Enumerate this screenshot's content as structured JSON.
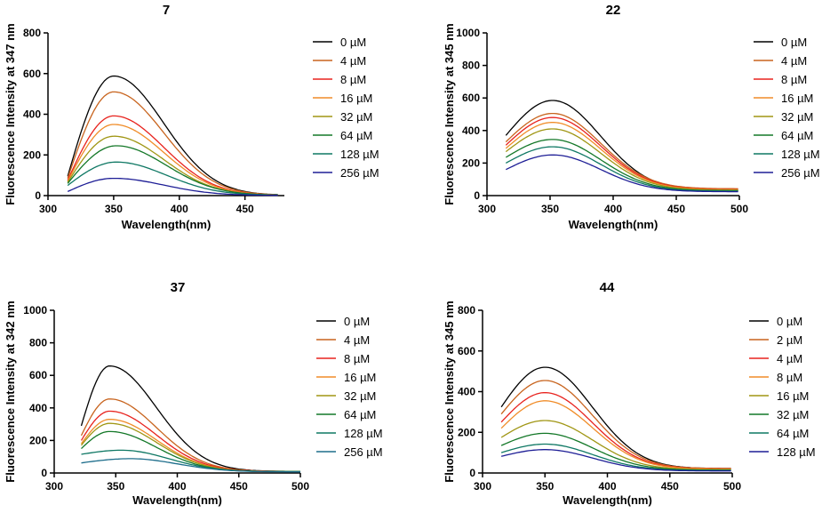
{
  "chart_data": [
    {
      "type": "line",
      "title": "7",
      "xlabel": "Wavelength(nm)",
      "ylabel": "Fluorescence Intensity at 347 nm",
      "xlim": [
        300,
        480
      ],
      "ylim": [
        0,
        800
      ],
      "x_ticks": [
        300,
        350,
        400,
        450
      ],
      "y_ticks": [
        0,
        200,
        400,
        600,
        800
      ],
      "x_range": [
        315,
        475
      ],
      "series": [
        {
          "name": "0 µM",
          "color": "#000000",
          "peak_x": 350,
          "peak": 588,
          "start": 95,
          "tail": 2
        },
        {
          "name": "4 µM",
          "color": "#c8641e",
          "peak_x": 350,
          "peak": 510,
          "start": 85,
          "tail": 2
        },
        {
          "name": "8 µM",
          "color": "#e8231e",
          "peak_x": 350,
          "peak": 392,
          "start": 75,
          "tail": 2
        },
        {
          "name": "16 µM",
          "color": "#f08c28",
          "peak_x": 350,
          "peak": 350,
          "start": 70,
          "tail": 2
        },
        {
          "name": "32 µM",
          "color": "#a09614",
          "peak_x": 350,
          "peak": 292,
          "start": 65,
          "tail": 2
        },
        {
          "name": "64 µM",
          "color": "#147828",
          "peak_x": 352,
          "peak": 245,
          "start": 60,
          "tail": 2
        },
        {
          "name": "128 µM",
          "color": "#0f7864",
          "peak_x": 352,
          "peak": 165,
          "start": 50,
          "tail": 2
        },
        {
          "name": "256 µM",
          "color": "#1e1e96",
          "peak_x": 350,
          "peak": 85,
          "start": 20,
          "tail": 1
        }
      ]
    },
    {
      "type": "line",
      "title": "22",
      "xlabel": "Wavelength(nm)",
      "ylabel": "Fluorescence Intensity at 345 nm",
      "xlim": [
        300,
        500
      ],
      "ylim": [
        0,
        1000
      ],
      "x_ticks": [
        300,
        350,
        400,
        450,
        500
      ],
      "y_ticks": [
        0,
        200,
        400,
        600,
        800,
        1000
      ],
      "x_range": [
        315,
        500
      ],
      "series": [
        {
          "name": "0 µM",
          "color": "#000000",
          "peak_x": 352,
          "peak": 585,
          "start": 370,
          "tail": 30
        },
        {
          "name": "4 µM",
          "color": "#c8641e",
          "peak_x": 352,
          "peak": 505,
          "start": 330,
          "tail": 42
        },
        {
          "name": "8 µM",
          "color": "#e8231e",
          "peak_x": 352,
          "peak": 480,
          "start": 310,
          "tail": 38
        },
        {
          "name": "16 µM",
          "color": "#f08c28",
          "peak_x": 352,
          "peak": 450,
          "start": 290,
          "tail": 36
        },
        {
          "name": "32 µM",
          "color": "#a09614",
          "peak_x": 352,
          "peak": 410,
          "start": 270,
          "tail": 33
        },
        {
          "name": "64 µM",
          "color": "#147828",
          "peak_x": 352,
          "peak": 345,
          "start": 235,
          "tail": 30
        },
        {
          "name": "128 µM",
          "color": "#0f7864",
          "peak_x": 352,
          "peak": 300,
          "start": 200,
          "tail": 27
        },
        {
          "name": "256 µM",
          "color": "#1e1e96",
          "peak_x": 352,
          "peak": 250,
          "start": 160,
          "tail": 24
        }
      ]
    },
    {
      "type": "line",
      "title": "37",
      "xlabel": "Wavelength(nm)",
      "ylabel": "Fluorescence Intensity at 342 nm",
      "xlim": [
        300,
        500
      ],
      "ylim": [
        0,
        1000
      ],
      "x_ticks": [
        300,
        350,
        400,
        450,
        500
      ],
      "y_ticks": [
        0,
        200,
        400,
        600,
        800,
        1000
      ],
      "x_range": [
        322,
        500
      ],
      "series": [
        {
          "name": "0 µM",
          "color": "#000000",
          "peak_x": 345,
          "peak": 658,
          "start": 290,
          "tail": 10
        },
        {
          "name": "4 µM",
          "color": "#c8641e",
          "peak_x": 345,
          "peak": 455,
          "start": 230,
          "tail": 10
        },
        {
          "name": "8 µM",
          "color": "#e8231e",
          "peak_x": 345,
          "peak": 380,
          "start": 200,
          "tail": 10
        },
        {
          "name": "16 µM",
          "color": "#f08c28",
          "peak_x": 345,
          "peak": 330,
          "start": 180,
          "tail": 9
        },
        {
          "name": "32 µM",
          "color": "#a09614",
          "peak_x": 345,
          "peak": 305,
          "start": 170,
          "tail": 9
        },
        {
          "name": "64 µM",
          "color": "#147828",
          "peak_x": 345,
          "peak": 255,
          "start": 150,
          "tail": 9
        },
        {
          "name": "128 µM",
          "color": "#0f7864",
          "peak_x": 355,
          "peak": 140,
          "start": 115,
          "tail": 8
        },
        {
          "name": "256 µM",
          "color": "#1e6e8c",
          "peak_x": 362,
          "peak": 88,
          "start": 62,
          "tail": 7
        }
      ]
    },
    {
      "type": "line",
      "title": "44",
      "xlabel": "Wavelength(nm)",
      "ylabel": "Fluorescence Intensity at 345 nm",
      "xlim": [
        300,
        500
      ],
      "ylim": [
        0,
        800
      ],
      "x_ticks": [
        300,
        350,
        400,
        450,
        500
      ],
      "y_ticks": [
        0,
        200,
        400,
        600,
        800
      ],
      "x_range": [
        315,
        500
      ],
      "series": [
        {
          "name": "0 µM",
          "color": "#000000",
          "peak_x": 350,
          "peak": 520,
          "start": 325,
          "tail": 22
        },
        {
          "name": "2 µM",
          "color": "#c8641e",
          "peak_x": 350,
          "peak": 455,
          "start": 290,
          "tail": 22
        },
        {
          "name": "4 µM",
          "color": "#e8231e",
          "peak_x": 350,
          "peak": 395,
          "start": 250,
          "tail": 20
        },
        {
          "name": "8 µM",
          "color": "#f08c28",
          "peak_x": 350,
          "peak": 355,
          "start": 220,
          "tail": 19
        },
        {
          "name": "16 µM",
          "color": "#a09614",
          "peak_x": 350,
          "peak": 258,
          "start": 175,
          "tail": 16
        },
        {
          "name": "32 µM",
          "color": "#147828",
          "peak_x": 350,
          "peak": 195,
          "start": 135,
          "tail": 14
        },
        {
          "name": "64 µM",
          "color": "#0f7864",
          "peak_x": 350,
          "peak": 142,
          "start": 100,
          "tail": 12
        },
        {
          "name": "128 µM",
          "color": "#1e1e96",
          "peak_x": 350,
          "peak": 115,
          "start": 82,
          "tail": 10
        }
      ]
    }
  ]
}
